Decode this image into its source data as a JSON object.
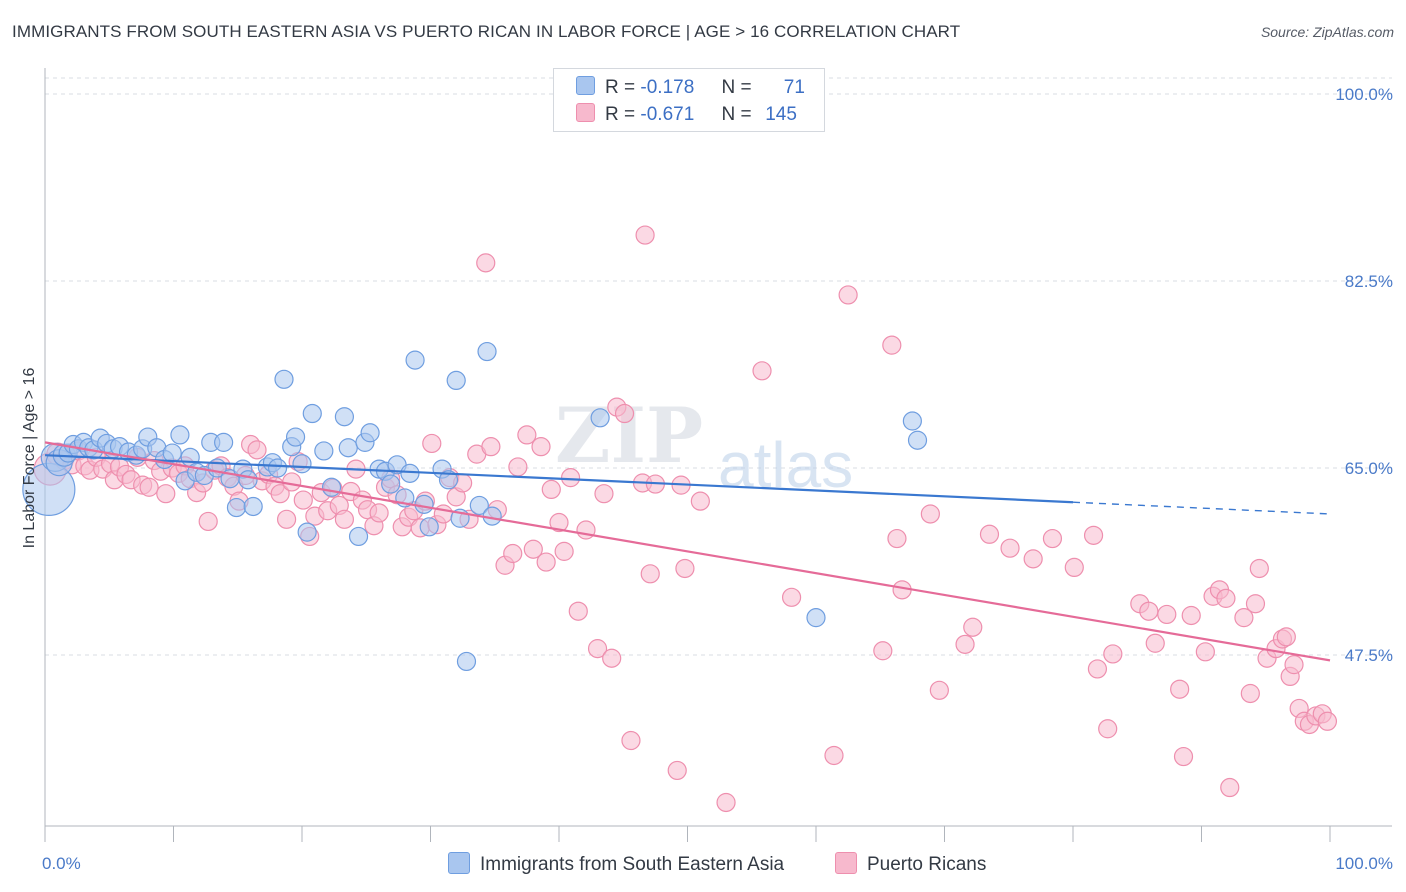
{
  "title": "IMMIGRANTS FROM SOUTH EASTERN ASIA VS PUERTO RICAN IN LABOR FORCE | AGE > 16 CORRELATION CHART",
  "source": "Source: ZipAtlas.com",
  "watermark": {
    "zip": "ZIP",
    "atlas": "atlas"
  },
  "legend": {
    "rows": [
      {
        "r_label": "R =",
        "r_value": "-0.178",
        "n_label": "N =",
        "n_value": "71"
      },
      {
        "r_label": "R =",
        "r_value": "-0.671",
        "n_label": "N =",
        "n_value": "145"
      }
    ],
    "bottom": [
      "Immigrants from South Eastern Asia",
      "Puerto Ricans"
    ]
  },
  "colors": {
    "blue_fill": "#a9c6ef",
    "blue_stroke": "#6f9ee0",
    "blue_line": "#3a78d0",
    "pink_fill": "#f7b9cd",
    "pink_stroke": "#ee8fae",
    "pink_line": "#e56b98",
    "grid": "#d9dde3",
    "tick_text": "#4a7ac8"
  },
  "chart_data": {
    "type": "scatter",
    "title": "IMMIGRANTS FROM SOUTH EASTERN ASIA VS PUERTO RICAN IN LABOR FORCE | AGE > 16 CORRELATION CHART",
    "xlabel": "",
    "ylabel": "In Labor Force | Age > 16",
    "xlim": [
      0,
      100
    ],
    "ylim": [
      31.5,
      101.5
    ],
    "x_tick_labels": [
      "0.0%",
      "100.0%"
    ],
    "y_ticks": [
      100,
      82.5,
      65,
      47.5
    ],
    "y_tick_labels": [
      "100.0%",
      "82.5%",
      "65.0%",
      "47.5%"
    ],
    "grid": true,
    "legend_position": "top-center",
    "series": [
      {
        "name": "Immigrants from South Eastern Asia",
        "r": -0.178,
        "n": 71,
        "trend": {
          "x0": 0,
          "y0": 66.2,
          "x1": 80,
          "y1": 61.8,
          "dash_to_x": 100,
          "dash_to_y": 60.7
        },
        "points": [
          [
            0.3,
            63.0,
            26
          ],
          [
            0.8,
            66.0,
            14
          ],
          [
            1.1,
            65.5,
            13
          ],
          [
            1.5,
            66.2,
            11
          ],
          [
            1.8,
            66.4,
            9
          ],
          [
            2.2,
            67.2,
            9
          ],
          [
            2.6,
            66.8,
            9
          ],
          [
            3.0,
            67.4,
            9
          ],
          [
            3.4,
            66.9,
            9
          ],
          [
            3.8,
            66.7,
            9
          ],
          [
            4.3,
            67.8,
            9
          ],
          [
            4.8,
            67.3,
            9
          ],
          [
            5.3,
            66.8,
            9
          ],
          [
            5.8,
            67.0,
            9
          ],
          [
            6.5,
            66.5,
            9
          ],
          [
            7.1,
            66.2,
            9
          ],
          [
            7.6,
            66.8,
            9
          ],
          [
            8.0,
            67.9,
            9
          ],
          [
            8.7,
            66.9,
            9
          ],
          [
            9.3,
            65.8,
            9
          ],
          [
            9.9,
            66.4,
            9
          ],
          [
            10.5,
            68.1,
            9
          ],
          [
            10.9,
            63.8,
            9
          ],
          [
            11.3,
            66.0,
            9
          ],
          [
            11.8,
            64.6,
            9
          ],
          [
            12.4,
            64.3,
            9
          ],
          [
            12.9,
            67.4,
            9
          ],
          [
            13.4,
            65.0,
            9
          ],
          [
            13.9,
            67.4,
            9
          ],
          [
            14.4,
            64.0,
            9
          ],
          [
            14.9,
            61.3,
            9
          ],
          [
            15.4,
            64.9,
            9
          ],
          [
            15.8,
            63.9,
            9
          ],
          [
            16.2,
            61.4,
            9
          ],
          [
            17.3,
            65.1,
            9
          ],
          [
            17.7,
            65.5,
            9
          ],
          [
            18.1,
            65.0,
            9
          ],
          [
            18.6,
            73.3,
            9
          ],
          [
            19.2,
            67.0,
            9
          ],
          [
            19.5,
            67.9,
            9
          ],
          [
            20.0,
            65.4,
            9
          ],
          [
            20.4,
            59.0,
            9
          ],
          [
            20.8,
            70.1,
            9
          ],
          [
            21.7,
            66.6,
            9
          ],
          [
            22.3,
            63.2,
            9
          ],
          [
            23.3,
            69.8,
            9
          ],
          [
            23.6,
            66.9,
            9
          ],
          [
            24.4,
            58.6,
            9
          ],
          [
            24.9,
            67.4,
            9
          ],
          [
            25.3,
            68.3,
            9
          ],
          [
            26.0,
            64.9,
            9
          ],
          [
            26.5,
            64.7,
            9
          ],
          [
            26.9,
            63.5,
            9
          ],
          [
            27.4,
            65.3,
            9
          ],
          [
            28.0,
            62.2,
            9
          ],
          [
            28.4,
            64.5,
            9
          ],
          [
            28.8,
            75.1,
            9
          ],
          [
            29.5,
            61.6,
            9
          ],
          [
            29.9,
            59.5,
            9
          ],
          [
            30.9,
            64.9,
            9
          ],
          [
            31.4,
            63.9,
            9
          ],
          [
            32.0,
            73.2,
            9
          ],
          [
            32.3,
            60.3,
            9
          ],
          [
            32.8,
            46.9,
            9
          ],
          [
            33.8,
            61.5,
            9
          ],
          [
            34.4,
            75.9,
            9
          ],
          [
            34.8,
            60.5,
            9
          ],
          [
            43.2,
            69.7,
            9
          ],
          [
            60.0,
            51.0,
            9
          ],
          [
            67.5,
            69.4,
            9
          ],
          [
            67.9,
            67.6,
            9
          ]
        ]
      },
      {
        "name": "Puerto Ricans",
        "r": -0.671,
        "n": 145,
        "trend": {
          "x0": 0,
          "y0": 67.4,
          "x1": 100,
          "y1": 47.0
        },
        "points": [
          [
            0.4,
            64.9,
            16
          ],
          [
            1.0,
            66.3,
            11
          ],
          [
            1.5,
            65.7,
            9
          ],
          [
            2.1,
            65.3,
            9
          ],
          [
            2.6,
            66.6,
            9
          ],
          [
            3.1,
            65.2,
            9
          ],
          [
            3.5,
            64.8,
            9
          ],
          [
            4.0,
            66.0,
            9
          ],
          [
            4.5,
            64.9,
            9
          ],
          [
            5.1,
            65.4,
            9
          ],
          [
            5.4,
            63.9,
            9
          ],
          [
            5.8,
            65.1,
            9
          ],
          [
            6.3,
            64.4,
            9
          ],
          [
            6.7,
            63.9,
            9
          ],
          [
            7.2,
            66.0,
            9
          ],
          [
            7.6,
            63.4,
            9
          ],
          [
            8.1,
            63.2,
            9
          ],
          [
            8.5,
            65.7,
            9
          ],
          [
            9.0,
            64.7,
            9
          ],
          [
            9.4,
            62.6,
            9
          ],
          [
            9.9,
            65.0,
            9
          ],
          [
            10.4,
            64.5,
            9
          ],
          [
            10.9,
            65.2,
            9
          ],
          [
            11.3,
            64.0,
            9
          ],
          [
            11.8,
            62.7,
            9
          ],
          [
            12.3,
            63.6,
            9
          ],
          [
            12.7,
            60.0,
            9
          ],
          [
            13.2,
            64.8,
            9
          ],
          [
            13.7,
            65.2,
            9
          ],
          [
            14.2,
            64.1,
            9
          ],
          [
            14.7,
            63.3,
            9
          ],
          [
            15.1,
            61.9,
            9
          ],
          [
            15.6,
            64.3,
            9
          ],
          [
            16.0,
            67.2,
            9
          ],
          [
            16.5,
            66.7,
            9
          ],
          [
            16.9,
            63.8,
            9
          ],
          [
            17.4,
            64.4,
            9
          ],
          [
            17.9,
            63.3,
            9
          ],
          [
            18.3,
            62.6,
            9
          ],
          [
            18.8,
            60.2,
            9
          ],
          [
            19.2,
            63.7,
            9
          ],
          [
            19.7,
            65.6,
            9
          ],
          [
            20.1,
            62.0,
            9
          ],
          [
            20.6,
            58.6,
            9
          ],
          [
            21.0,
            60.5,
            9
          ],
          [
            21.5,
            62.7,
            9
          ],
          [
            22.0,
            61.0,
            9
          ],
          [
            22.4,
            63.1,
            9
          ],
          [
            22.9,
            61.5,
            9
          ],
          [
            23.3,
            60.2,
            9
          ],
          [
            23.8,
            62.8,
            9
          ],
          [
            24.2,
            64.9,
            9
          ],
          [
            24.7,
            62.0,
            9
          ],
          [
            25.1,
            61.1,
            9
          ],
          [
            25.6,
            59.6,
            9
          ],
          [
            26.0,
            60.8,
            9
          ],
          [
            26.5,
            63.2,
            9
          ],
          [
            26.9,
            64.0,
            9
          ],
          [
            27.4,
            62.5,
            9
          ],
          [
            27.8,
            59.5,
            9
          ],
          [
            28.3,
            60.4,
            9
          ],
          [
            28.7,
            61.0,
            9
          ],
          [
            29.2,
            59.4,
            9
          ],
          [
            29.6,
            61.9,
            9
          ],
          [
            30.1,
            67.3,
            9
          ],
          [
            30.5,
            59.7,
            9
          ],
          [
            31.0,
            60.7,
            9
          ],
          [
            31.5,
            64.1,
            9
          ],
          [
            32.0,
            62.3,
            9
          ],
          [
            32.5,
            63.6,
            9
          ],
          [
            33.0,
            60.2,
            9
          ],
          [
            33.6,
            66.3,
            9
          ],
          [
            34.3,
            84.2,
            9
          ],
          [
            34.7,
            67.0,
            9
          ],
          [
            35.2,
            61.1,
            9
          ],
          [
            35.8,
            55.9,
            9
          ],
          [
            36.4,
            57.0,
            9
          ],
          [
            36.8,
            65.1,
            9
          ],
          [
            37.5,
            68.1,
            9
          ],
          [
            38.0,
            57.4,
            9
          ],
          [
            38.6,
            67.0,
            9
          ],
          [
            39.0,
            56.2,
            9
          ],
          [
            39.4,
            63.0,
            9
          ],
          [
            40.0,
            59.9,
            9
          ],
          [
            40.4,
            57.2,
            9
          ],
          [
            40.9,
            64.1,
            9
          ],
          [
            41.5,
            51.6,
            9
          ],
          [
            42.1,
            59.2,
            9
          ],
          [
            43.0,
            48.1,
            9
          ],
          [
            43.5,
            62.6,
            9
          ],
          [
            44.1,
            47.2,
            9
          ],
          [
            44.5,
            70.7,
            9
          ],
          [
            45.1,
            70.1,
            9
          ],
          [
            45.6,
            39.5,
            9
          ],
          [
            46.5,
            63.6,
            9
          ],
          [
            46.7,
            86.8,
            9
          ],
          [
            47.1,
            55.1,
            9
          ],
          [
            47.5,
            63.5,
            9
          ],
          [
            49.2,
            36.7,
            9
          ],
          [
            49.5,
            63.4,
            9
          ],
          [
            49.8,
            55.6,
            9
          ],
          [
            51.0,
            61.9,
            9
          ],
          [
            53.0,
            33.7,
            9
          ],
          [
            55.8,
            74.1,
            9
          ],
          [
            58.1,
            52.9,
            9
          ],
          [
            61.4,
            38.1,
            9
          ],
          [
            62.5,
            81.2,
            9
          ],
          [
            65.2,
            47.9,
            9
          ],
          [
            65.9,
            76.5,
            9
          ],
          [
            66.3,
            58.4,
            9
          ],
          [
            66.7,
            53.6,
            9
          ],
          [
            68.9,
            60.7,
            9
          ],
          [
            69.6,
            44.2,
            9
          ],
          [
            71.6,
            48.5,
            9
          ],
          [
            72.2,
            50.1,
            9
          ],
          [
            73.5,
            58.8,
            9
          ],
          [
            75.1,
            57.5,
            9
          ],
          [
            76.9,
            56.5,
            9
          ],
          [
            78.4,
            58.4,
            9
          ],
          [
            80.1,
            55.7,
            9
          ],
          [
            81.6,
            58.7,
            9
          ],
          [
            81.9,
            46.2,
            9
          ],
          [
            82.7,
            40.6,
            9
          ],
          [
            83.1,
            47.6,
            9
          ],
          [
            85.2,
            52.3,
            9
          ],
          [
            85.9,
            51.6,
            9
          ],
          [
            86.4,
            48.6,
            9
          ],
          [
            87.3,
            51.3,
            9
          ],
          [
            88.3,
            44.3,
            9
          ],
          [
            88.6,
            38.0,
            9
          ],
          [
            89.2,
            51.2,
            9
          ],
          [
            90.3,
            47.8,
            9
          ],
          [
            90.9,
            53.0,
            9
          ],
          [
            91.4,
            53.6,
            9
          ],
          [
            91.9,
            52.8,
            9
          ],
          [
            92.2,
            35.1,
            9
          ],
          [
            93.3,
            51.0,
            9
          ],
          [
            93.8,
            43.9,
            9
          ],
          [
            94.2,
            52.3,
            9
          ],
          [
            94.5,
            55.6,
            9
          ],
          [
            95.1,
            47.2,
            9
          ],
          [
            95.8,
            48.1,
            9
          ],
          [
            96.3,
            49.0,
            9
          ],
          [
            96.6,
            49.2,
            9
          ],
          [
            96.9,
            45.5,
            9
          ],
          [
            97.2,
            46.6,
            9
          ],
          [
            97.6,
            42.5,
            9
          ],
          [
            98.0,
            41.3,
            9
          ],
          [
            98.4,
            41.0,
            9
          ],
          [
            98.9,
            41.8,
            9
          ],
          [
            99.4,
            42.0,
            9
          ],
          [
            99.8,
            41.3,
            9
          ]
        ]
      }
    ]
  }
}
